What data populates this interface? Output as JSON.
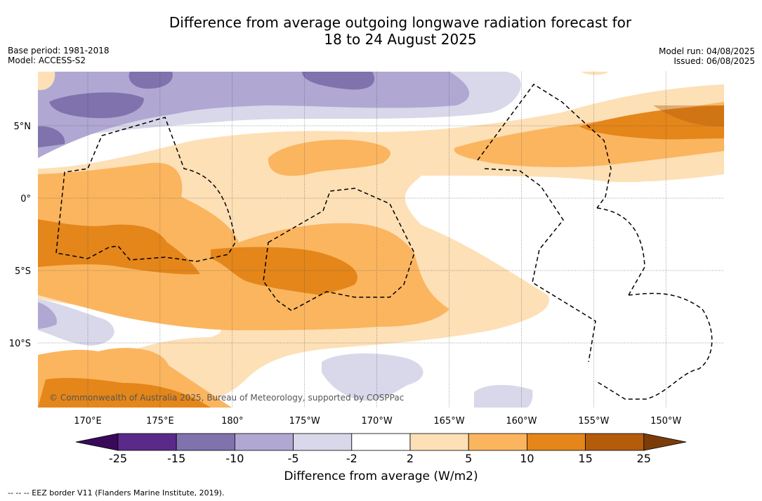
{
  "title_line1": "Difference from average outgoing longwave radiation forecast for",
  "title_line2": "18 to 24 August 2025",
  "meta_left": {
    "base_period": "Base period: 1981-2018",
    "model": "Model: ACCESS-S2"
  },
  "meta_right": {
    "model_run": "Model run: 04/08/2025",
    "issued": "Issued: 06/08/2025"
  },
  "lat_labels": [
    "5°N",
    "0°",
    "5°S",
    "10°S"
  ],
  "lon_labels": [
    "170°E",
    "175°E",
    "180°",
    "175°W",
    "170°W",
    "165°W",
    "160°W",
    "155°W",
    "150°W"
  ],
  "copyright": "© Commonwealth of Australia 2025, Bureau of Meteorology, supported by COSPPac",
  "colorbar": {
    "ticks": [
      "-25",
      "-15",
      "-10",
      "-5",
      "-2",
      "2",
      "5",
      "10",
      "15",
      "25"
    ],
    "colors": [
      "#5a2a8a",
      "#7f72ad",
      "#b0a8d2",
      "#d8d8ea",
      "#ffffff",
      "#fde0b6",
      "#fbb55f",
      "#e4861a",
      "#b35c0c"
    ],
    "under_color": "#3a0a5a",
    "over_color": "#7c3c0a",
    "label": "Difference from average (W/m2)"
  },
  "footnote": "--  --  -- EEZ border V11 (Flanders Marine Institute, 2019)."
}
